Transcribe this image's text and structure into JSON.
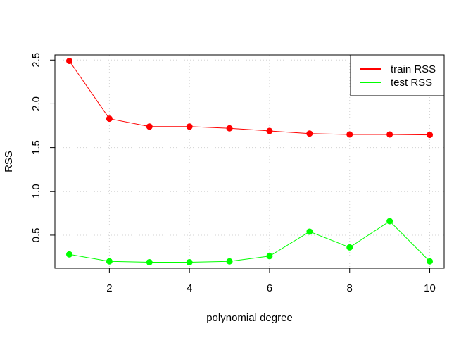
{
  "chart_data": {
    "type": "line",
    "title": "",
    "xlabel": "polynomial degree",
    "ylabel": "RSS",
    "xlim": [
      0.64,
      10.36
    ],
    "ylim": [
      0.1215,
      2.5585
    ],
    "x_ticks": [
      2,
      4,
      6,
      8,
      10
    ],
    "y_ticks": [
      0.5,
      1.0,
      1.5,
      2.0,
      2.5
    ],
    "y_tick_labels": [
      "0.5",
      "1.0",
      "1.5",
      "2.0",
      "2.5"
    ],
    "grid": "dotted",
    "legend_position": "top-right",
    "x": [
      1,
      2,
      3,
      4,
      5,
      6,
      7,
      8,
      9,
      10
    ],
    "series": [
      {
        "name": "train RSS",
        "color": "#ff0000",
        "values": [
          2.49,
          1.83,
          1.74,
          1.74,
          1.72,
          1.69,
          1.66,
          1.65,
          1.65,
          1.645
        ]
      },
      {
        "name": "test RSS",
        "color": "#00ff00",
        "values": [
          0.28,
          0.2,
          0.19,
          0.19,
          0.2,
          0.26,
          0.54,
          0.36,
          0.66,
          0.2
        ]
      }
    ]
  }
}
